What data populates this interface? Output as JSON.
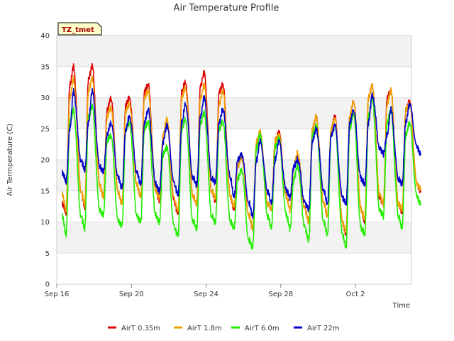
{
  "chart_data": {
    "type": "line",
    "title": "Air Temperature Profile",
    "xlabel": "Time",
    "ylabel": "Air Termperature (C)",
    "site_label": "TZ_tmet",
    "xlim": [
      "2023-09-16",
      "2023-10-05"
    ],
    "ylim": [
      0,
      40
    ],
    "y_ticks": [
      0,
      5,
      10,
      15,
      20,
      25,
      30,
      35,
      40
    ],
    "x_ticks": [
      {
        "date": "2023-09-16",
        "label": "Sep 16"
      },
      {
        "date": "2023-09-20",
        "label": "Sep 20"
      },
      {
        "date": "2023-09-24",
        "label": "Sep 24"
      },
      {
        "date": "2023-09-28",
        "label": "Sep 28"
      },
      {
        "date": "2023-10-02",
        "label": "Oct 2"
      }
    ],
    "grid": "horizontal bands",
    "legend_position": "bottom",
    "start_date": "2023-09-16",
    "series": [
      {
        "name": "AirT 0.35m",
        "color": "#dd0000",
        "x": [
          16.3,
          16.5,
          16.7,
          16.9,
          17.3,
          17.5,
          17.7,
          17.9,
          18.3,
          18.5,
          18.7,
          18.9,
          19.3,
          19.5,
          19.7,
          19.9,
          20.3,
          20.5,
          20.7,
          20.9,
          21.3,
          21.5,
          21.7,
          21.9,
          22.3,
          22.5,
          22.7,
          22.9,
          23.3,
          23.5,
          23.7,
          23.9,
          24.3,
          24.5,
          24.7,
          24.9,
          25.3,
          25.5,
          25.7,
          25.9,
          26.3,
          26.5,
          26.7,
          26.9,
          27.3,
          27.5,
          27.7,
          27.9,
          28.3,
          28.5,
          28.7,
          28.9,
          29.3,
          29.5,
          29.7,
          29.9,
          30.3,
          30.5,
          30.7,
          30.9,
          31.3,
          31.5,
          31.7,
          31.9,
          32.3,
          32.5,
          32.7,
          32.9,
          33.3,
          33.5,
          33.7,
          33.9,
          34.3,
          34.5,
          34.7,
          34.9,
          35.3,
          35.5
        ],
        "y": [
          13,
          11.5,
          32,
          35,
          15,
          12.5,
          33,
          35,
          16,
          14,
          28,
          30,
          14.5,
          13,
          29,
          30,
          16,
          14,
          31,
          32,
          15,
          13.5,
          24,
          26,
          13,
          11.5,
          31,
          32.5,
          14,
          13,
          32,
          34,
          15,
          13.5,
          31,
          32,
          14,
          12,
          19,
          21,
          11,
          9,
          22,
          24,
          13,
          12,
          23,
          24.5,
          14,
          12,
          19,
          21,
          12,
          10,
          25,
          27,
          13,
          11,
          25,
          27,
          10,
          8,
          27,
          29.5,
          12,
          10,
          30,
          32,
          14,
          13,
          30,
          31,
          13,
          11.5,
          28,
          29.5,
          16,
          15
        ]
      },
      {
        "name": "AirT 1.8m",
        "color": "#f0a000",
        "x": [
          16.3,
          16.5,
          16.7,
          16.9,
          17.3,
          17.5,
          17.7,
          17.9,
          18.3,
          18.5,
          18.7,
          18.9,
          19.3,
          19.5,
          19.7,
          19.9,
          20.3,
          20.5,
          20.7,
          20.9,
          21.3,
          21.5,
          21.7,
          21.9,
          22.3,
          22.5,
          22.7,
          22.9,
          23.3,
          23.5,
          23.7,
          23.9,
          24.3,
          24.5,
          24.7,
          24.9,
          25.3,
          25.5,
          25.7,
          25.9,
          26.3,
          26.5,
          26.7,
          26.9,
          27.3,
          27.5,
          27.7,
          27.9,
          28.3,
          28.5,
          28.7,
          28.9,
          29.3,
          29.5,
          29.7,
          29.9,
          30.3,
          30.5,
          30.7,
          30.9,
          31.3,
          31.5,
          31.7,
          31.9,
          32.3,
          32.5,
          32.7,
          32.9,
          33.3,
          33.5,
          33.7,
          33.9,
          34.3,
          34.5,
          34.7,
          34.9,
          35.3,
          35.5
        ],
        "y": [
          14.5,
          12,
          30,
          33,
          15,
          13,
          31,
          33,
          16,
          14,
          27,
          28.5,
          14.5,
          13,
          28,
          29,
          16,
          14,
          30,
          31,
          15,
          14,
          24,
          26.5,
          13.5,
          12,
          30,
          31.5,
          14,
          13,
          30,
          32,
          15,
          14,
          29,
          31,
          14,
          12.5,
          19,
          20.5,
          11,
          9,
          23,
          24.5,
          13,
          12,
          23,
          24,
          14,
          12,
          19,
          21,
          12,
          10,
          25,
          27,
          13,
          11,
          25,
          26.5,
          10,
          8.5,
          27,
          29.5,
          12,
          10.5,
          30,
          32,
          14.5,
          13,
          29,
          31,
          13,
          12,
          28,
          29,
          16,
          15.5
        ]
      },
      {
        "name": "AirT 6.0m",
        "color": "#22ee00",
        "x": [
          16.3,
          16.5,
          16.7,
          16.9,
          17.3,
          17.5,
          17.7,
          17.9,
          18.3,
          18.5,
          18.7,
          18.9,
          19.3,
          19.5,
          19.7,
          19.9,
          20.3,
          20.5,
          20.7,
          20.9,
          21.3,
          21.5,
          21.7,
          21.9,
          22.3,
          22.5,
          22.7,
          22.9,
          23.3,
          23.5,
          23.7,
          23.9,
          24.3,
          24.5,
          24.7,
          24.9,
          25.3,
          25.5,
          25.7,
          25.9,
          26.3,
          26.5,
          26.7,
          26.9,
          27.3,
          27.5,
          27.7,
          27.9,
          28.3,
          28.5,
          28.7,
          28.9,
          29.3,
          29.5,
          29.7,
          29.9,
          30.3,
          30.5,
          30.7,
          30.9,
          31.3,
          31.5,
          31.7,
          31.9,
          32.3,
          32.5,
          32.7,
          32.9,
          33.3,
          33.5,
          33.7,
          33.9,
          34.3,
          34.5,
          34.7,
          34.9,
          35.3,
          35.5
        ],
        "y": [
          11,
          8,
          26,
          28,
          11,
          9,
          27,
          28.5,
          12,
          11,
          23,
          24,
          10,
          9.5,
          25,
          26,
          11,
          10,
          25,
          26,
          11,
          10,
          21,
          22,
          9,
          8,
          25,
          26.5,
          10,
          9,
          26,
          27.5,
          11,
          10,
          25,
          26,
          10,
          9,
          17,
          18.5,
          7,
          6,
          22,
          24,
          11,
          9,
          22,
          23.5,
          11,
          9,
          17,
          19,
          9,
          7,
          24,
          25.5,
          10,
          8,
          24,
          25.5,
          8,
          6,
          25,
          27.5,
          9,
          8,
          27,
          30,
          12,
          11,
          26,
          28,
          11,
          9,
          24,
          26,
          14,
          13
        ]
      },
      {
        "name": "AirT 22m",
        "color": "#0000cc",
        "x": [
          16.3,
          16.5,
          16.7,
          16.9,
          17.3,
          17.5,
          17.7,
          17.9,
          18.3,
          18.5,
          18.7,
          18.9,
          19.3,
          19.5,
          19.7,
          19.9,
          20.3,
          20.5,
          20.7,
          20.9,
          21.3,
          21.5,
          21.7,
          21.9,
          22.3,
          22.5,
          22.7,
          22.9,
          23.3,
          23.5,
          23.7,
          23.9,
          24.3,
          24.5,
          24.7,
          24.9,
          25.3,
          25.5,
          25.7,
          25.9,
          26.3,
          26.5,
          26.7,
          26.9,
          27.3,
          27.5,
          27.7,
          27.9,
          28.3,
          28.5,
          28.7,
          28.9,
          29.3,
          29.5,
          29.7,
          29.9,
          30.3,
          30.5,
          30.7,
          30.9,
          31.3,
          31.5,
          31.7,
          31.9,
          32.3,
          32.5,
          32.7,
          32.9,
          33.3,
          33.5,
          33.7,
          33.9,
          34.3,
          34.5,
          34.7,
          34.9,
          35.3,
          35.5
        ],
        "y": [
          18,
          16.5,
          25,
          31,
          20,
          18.5,
          26,
          31,
          19,
          18,
          24,
          26,
          17,
          15.5,
          25,
          27,
          18,
          16,
          26,
          28,
          16,
          15,
          23,
          25.5,
          16,
          14.5,
          26,
          29,
          17,
          16,
          27,
          30,
          17,
          16.5,
          26,
          28,
          17,
          14,
          20,
          21,
          13,
          11,
          20,
          23,
          15,
          13,
          20,
          23,
          15,
          14,
          19,
          20,
          13,
          12,
          23,
          25,
          15,
          13,
          24,
          25.5,
          14,
          13,
          26,
          28,
          17,
          16,
          26,
          30.5,
          22,
          21,
          24,
          28,
          17,
          16,
          26,
          29,
          22,
          21
        ]
      }
    ]
  }
}
